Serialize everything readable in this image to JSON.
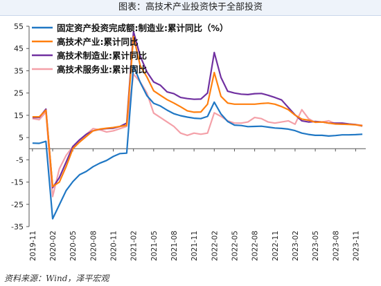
{
  "title": "图表：高技术产业投资快于全部投资",
  "source": "资料来源：Wind，泽平宏观",
  "chart_data": {
    "type": "line",
    "y_ticks": [
      55,
      45,
      35,
      25,
      15,
      5,
      -5,
      -15,
      -25,
      -35
    ],
    "ylim": [
      -35,
      55
    ],
    "x_tick_labels": [
      "2019-11",
      "2020-02",
      "2020-05",
      "2020-08",
      "2020-11",
      "2021-02",
      "2021-05",
      "2021-08",
      "2021-11",
      "2022-02",
      "2022-05",
      "2022-08",
      "2022-11",
      "2023-02",
      "2023-05",
      "2023-08",
      "2023-11"
    ],
    "x": [
      "2019-11",
      "2019-12",
      "2020-01",
      "2020-02",
      "2020-03",
      "2020-04",
      "2020-05",
      "2020-06",
      "2020-07",
      "2020-08",
      "2020-09",
      "2020-10",
      "2020-11",
      "2020-12",
      "2021-01",
      "2021-02",
      "2021-03",
      "2021-04",
      "2021-05",
      "2021-06",
      "2021-07",
      "2021-08",
      "2021-09",
      "2021-10",
      "2021-11",
      "2021-12",
      "2022-01",
      "2022-02",
      "2022-03",
      "2022-04",
      "2022-05",
      "2022-06",
      "2022-07",
      "2022-08",
      "2022-09",
      "2022-10",
      "2022-11",
      "2022-12",
      "2023-01",
      "2023-02",
      "2023-03",
      "2023-04",
      "2023-05",
      "2023-06",
      "2023-07",
      "2023-08",
      "2023-09",
      "2023-10",
      "2023-11",
      "2023-12"
    ],
    "series": [
      {
        "name": "固定资产投资完成额:制造业:累计同比（%）",
        "color": "#1f77c4",
        "values": [
          2.5,
          2.4,
          3.3,
          -31.5,
          -25.2,
          -18.8,
          -14.8,
          -11.7,
          -10.2,
          -8.1,
          -6.5,
          -5.3,
          -3.5,
          -2.2,
          -2.0,
          37.3,
          29.8,
          23.8,
          20.4,
          19.2,
          17.3,
          15.7,
          14.8,
          14.2,
          13.7,
          13.5,
          14.5,
          20.9,
          15.6,
          12.2,
          10.6,
          10.4,
          9.9,
          10.0,
          10.1,
          9.7,
          9.3,
          9.1,
          8.8,
          8.1,
          7.0,
          6.4,
          6.0,
          6.0,
          5.7,
          5.9,
          6.2,
          6.2,
          6.3,
          6.5
        ]
      },
      {
        "name": "高技术产业:累计同比",
        "color": "#ff7f0e",
        "values": [
          14.3,
          14.3,
          17.3,
          -17.0,
          -15.0,
          -8.0,
          0.0,
          3.0,
          5.5,
          8.0,
          8.8,
          9.2,
          9.5,
          10.0,
          10.5,
          50.4,
          37.3,
          32.2,
          26.0,
          24.0,
          22.0,
          20.5,
          18.8,
          17.0,
          16.4,
          16.5,
          20.0,
          34.2,
          23.5,
          20.5,
          20.0,
          20.0,
          20.0,
          20.0,
          20.3,
          20.5,
          20.0,
          18.9,
          17.5,
          15.1,
          13.3,
          12.8,
          11.9,
          12.0,
          11.5,
          11.1,
          11.0,
          10.9,
          10.7,
          10.3
        ]
      },
      {
        "name": "高技术制造业:累计同比",
        "color": "#7030a0",
        "values": [
          14.0,
          14.0,
          17.8,
          -17.5,
          -13.0,
          -6.0,
          1.0,
          4.0,
          6.5,
          8.0,
          8.7,
          9.0,
          9.2,
          10.0,
          11.5,
          52.6,
          41.6,
          34.5,
          30.0,
          28.5,
          25.5,
          24.7,
          23.0,
          22.5,
          22.2,
          22.3,
          25.0,
          43.2,
          32.0,
          25.8,
          25.0,
          24.5,
          24.3,
          24.7,
          24.8,
          24.0,
          23.0,
          21.9,
          18.5,
          15.2,
          12.5,
          12.0,
          12.2,
          12.0,
          11.5,
          11.5,
          11.5,
          11.1,
          10.8,
          10.2
        ]
      },
      {
        "name": "高技术服务业:累计同比",
        "color": "#f4a0a8",
        "values": [
          13.5,
          13.0,
          16.5,
          -21.5,
          -9.0,
          -3.0,
          1.0,
          3.0,
          6.5,
          9.0,
          8.5,
          7.5,
          8.0,
          9.0,
          10.0,
          33.5,
          30.0,
          25.0,
          16.0,
          14.0,
          12.0,
          10.0,
          7.0,
          6.0,
          7.0,
          6.5,
          7.0,
          16.1,
          14.5,
          12.5,
          11.5,
          11.5,
          12.0,
          14.0,
          13.5,
          12.0,
          11.5,
          12.0,
          12.5,
          11.0,
          17.5,
          13.5,
          11.8,
          12.0,
          12.5,
          11.2,
          11.0,
          11.0,
          10.8,
          10.5
        ]
      }
    ],
    "legend_position": "top-left",
    "grid": false
  }
}
